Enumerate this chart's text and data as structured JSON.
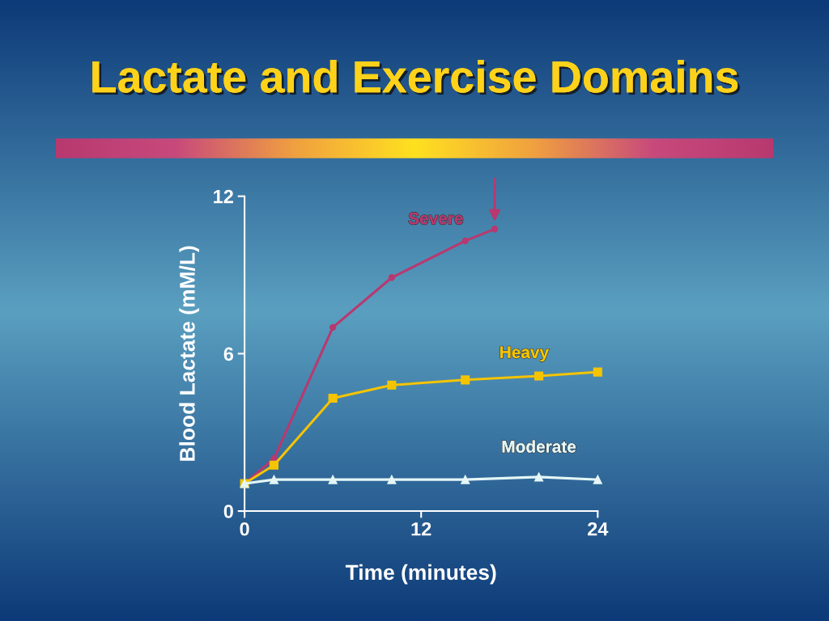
{
  "chart_data": {
    "type": "line",
    "title": "Lactate and Exercise Domains",
    "xlabel": "Time (minutes)",
    "ylabel": "Blood Lactate (mM/L)",
    "xlim": [
      0,
      24
    ],
    "xticks": [
      0,
      12,
      24
    ],
    "ylim": [
      0,
      12
    ],
    "yticks": [
      0,
      6,
      12
    ],
    "grid": false,
    "line_style": "solid",
    "series": [
      {
        "name": "Severe",
        "color": "#b8396f",
        "marker": "circle",
        "x": [
          0,
          2,
          6,
          10,
          15,
          17
        ],
        "values": [
          1.05,
          2.0,
          7.0,
          8.9,
          10.3,
          10.75
        ]
      },
      {
        "name": "Heavy",
        "color": "#f5c400",
        "marker": "square",
        "x": [
          0,
          2,
          6,
          10,
          15,
          20,
          24
        ],
        "values": [
          1.05,
          1.75,
          4.3,
          4.8,
          5.0,
          5.15,
          5.3
        ]
      },
      {
        "name": "Moderate",
        "color": "#e4f6f6",
        "marker": "triangle",
        "x": [
          0,
          2,
          6,
          10,
          15,
          20,
          24
        ],
        "values": [
          1.05,
          1.2,
          1.2,
          1.2,
          1.2,
          1.3,
          1.2
        ]
      }
    ]
  }
}
